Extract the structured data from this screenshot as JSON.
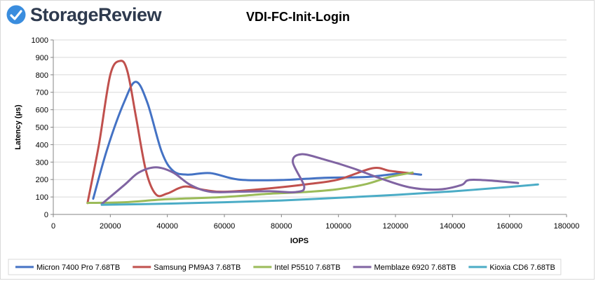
{
  "brand": {
    "name": "StorageReview",
    "logo_color": "#3a8dde"
  },
  "chart_data": {
    "type": "line",
    "title": "VDI-FC-Init-Login",
    "xlabel": "IOPS",
    "ylabel": "Latency (µs)",
    "xlim": [
      0,
      180000
    ],
    "ylim": [
      0,
      1000
    ],
    "xticks": [
      0,
      20000,
      40000,
      60000,
      80000,
      100000,
      120000,
      140000,
      160000,
      180000
    ],
    "yticks": [
      0,
      100,
      200,
      300,
      400,
      500,
      600,
      700,
      800,
      900,
      1000
    ],
    "grid": "horizontal",
    "legend_position": "bottom",
    "series": [
      {
        "name": "Micron 7400 Pro 7.68TB",
        "color": "#4472c4",
        "points": [
          [
            14000,
            90
          ],
          [
            19000,
            380
          ],
          [
            25000,
            650
          ],
          [
            29000,
            760
          ],
          [
            33000,
            640
          ],
          [
            38000,
            360
          ],
          [
            42000,
            250
          ],
          [
            47000,
            228
          ],
          [
            55000,
            237
          ],
          [
            65000,
            200
          ],
          [
            80000,
            197
          ],
          [
            95000,
            210
          ],
          [
            110000,
            215
          ],
          [
            122000,
            235
          ],
          [
            129000,
            228
          ]
        ]
      },
      {
        "name": "Samsung PM9A3 7.68TB",
        "color": "#c0504d",
        "points": [
          [
            12000,
            65
          ],
          [
            16000,
            400
          ],
          [
            20000,
            800
          ],
          [
            23500,
            880
          ],
          [
            26000,
            820
          ],
          [
            29000,
            560
          ],
          [
            32500,
            250
          ],
          [
            36000,
            115
          ],
          [
            40000,
            120
          ],
          [
            46000,
            160
          ],
          [
            53000,
            140
          ],
          [
            60000,
            130
          ],
          [
            75000,
            148
          ],
          [
            90000,
            175
          ],
          [
            100000,
            200
          ],
          [
            112000,
            265
          ],
          [
            118000,
            250
          ],
          [
            126000,
            235
          ]
        ]
      },
      {
        "name": "Intel P5510 7.68TB",
        "color": "#9bbb59",
        "points": [
          [
            12000,
            66
          ],
          [
            25000,
            70
          ],
          [
            40000,
            87
          ],
          [
            60000,
            100
          ],
          [
            75000,
            118
          ],
          [
            90000,
            130
          ],
          [
            100000,
            145
          ],
          [
            110000,
            175
          ],
          [
            118000,
            215
          ],
          [
            126000,
            240
          ]
        ]
      },
      {
        "name": "Memblaze 6920 7.68TB",
        "color": "#8064a2",
        "points": [
          [
            17000,
            60
          ],
          [
            25000,
            170
          ],
          [
            30000,
            240
          ],
          [
            36000,
            270
          ],
          [
            42000,
            240
          ],
          [
            48000,
            170
          ],
          [
            55000,
            130
          ],
          [
            65000,
            130
          ],
          [
            76000,
            133
          ],
          [
            85000,
            128
          ],
          [
            88000,
            160
          ],
          [
            84000,
            300
          ],
          [
            87000,
            345
          ],
          [
            95000,
            315
          ],
          [
            105000,
            265
          ],
          [
            115000,
            205
          ],
          [
            125000,
            155
          ],
          [
            135000,
            143
          ],
          [
            143000,
            168
          ],
          [
            146000,
            198
          ],
          [
            155000,
            192
          ],
          [
            163000,
            180
          ]
        ]
      },
      {
        "name": "Kioxia CD6 7.68TB",
        "color": "#4bacc6",
        "points": [
          [
            17000,
            55
          ],
          [
            40000,
            62
          ],
          [
            60000,
            70
          ],
          [
            80000,
            80
          ],
          [
            100000,
            95
          ],
          [
            120000,
            112
          ],
          [
            140000,
            132
          ],
          [
            160000,
            158
          ],
          [
            170000,
            172
          ]
        ]
      }
    ]
  }
}
